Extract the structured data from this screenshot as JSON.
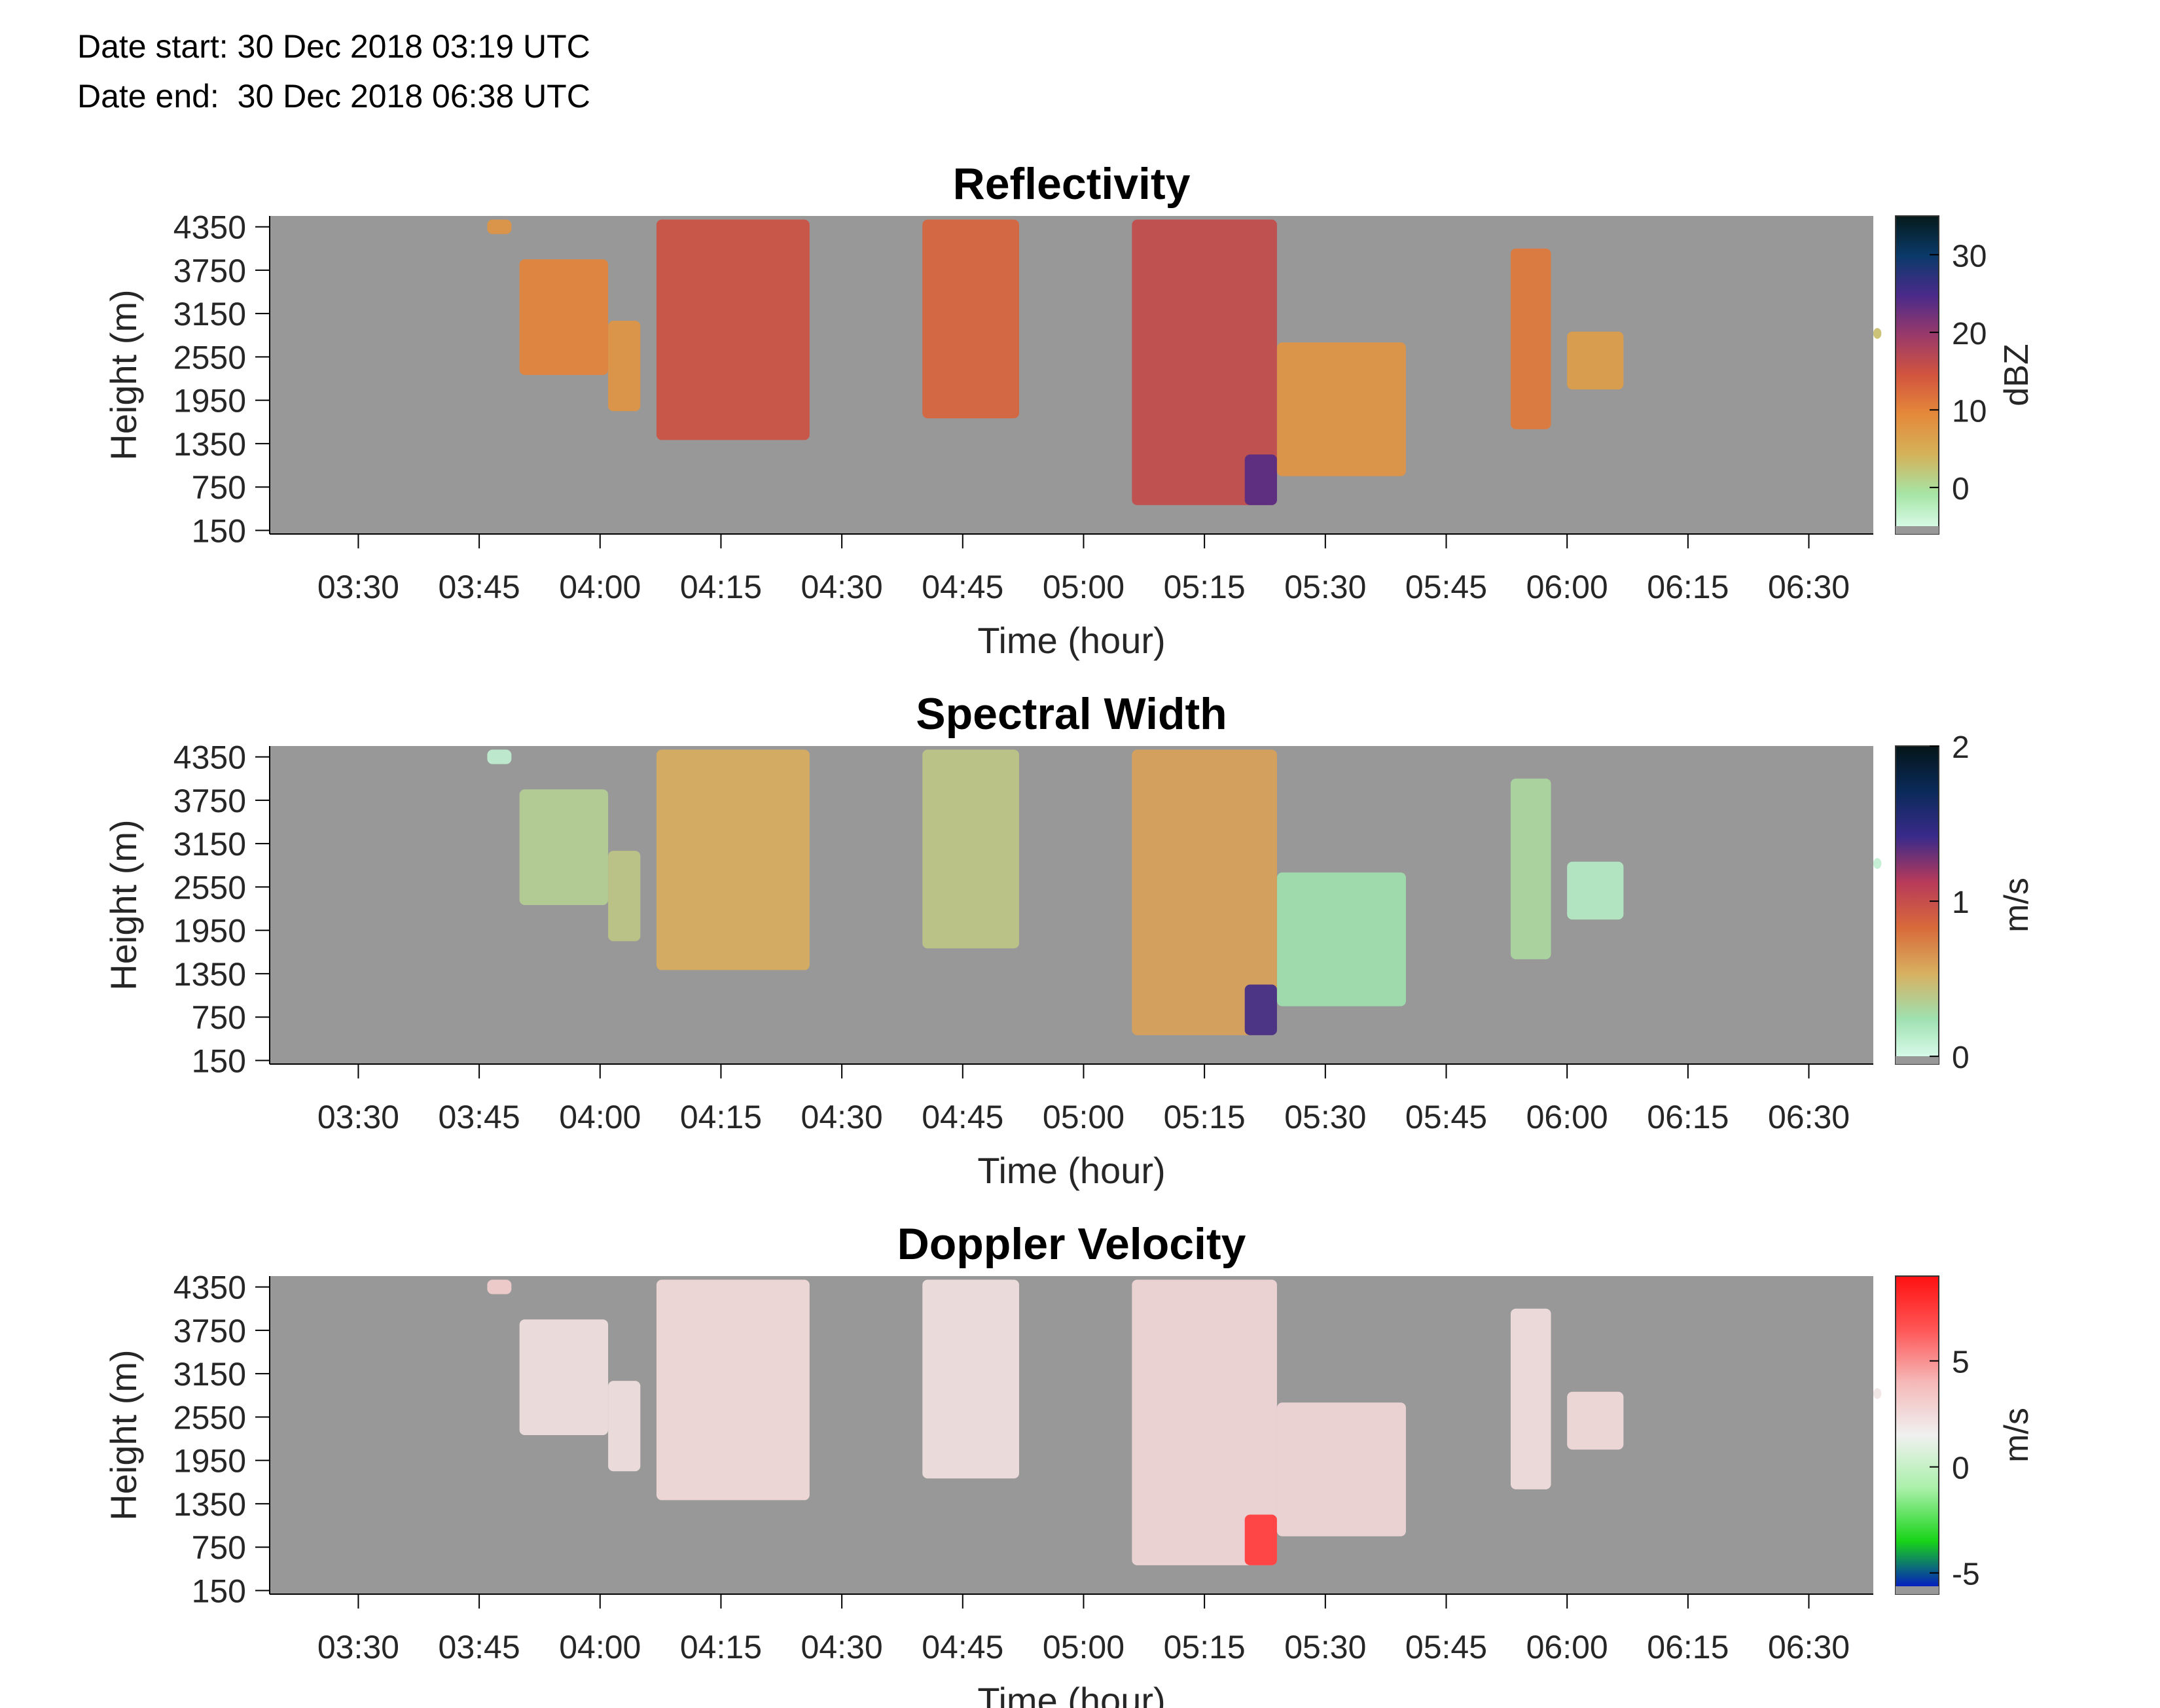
{
  "header": {
    "date_start_label": "Date start:",
    "date_start_value": "30 Dec 2018 03:19 UTC",
    "date_end_label": "Date end:",
    "date_end_value": "30 Dec 2018 06:38 UTC"
  },
  "colors": {
    "no_data": "#989898",
    "reflectivity_cmap": [
      "#e2fff4",
      "#a6e5a6",
      "#d4b25a",
      "#e58a3a",
      "#d2543e",
      "#9a3a6a",
      "#4a2a8a",
      "#0a3a6a",
      "#051a1a"
    ],
    "width_cmap": [
      "#e2fff4",
      "#9fe0b0",
      "#d8b060",
      "#d86a3a",
      "#b83a5a",
      "#3a2a8a",
      "#0a2a5a",
      "#051518"
    ],
    "velocity_cmap": [
      "#0000dd",
      "#18d418",
      "#aaf0aa",
      "#f0f0f0",
      "#f5b8b8",
      "#ff5555",
      "#ff1010"
    ]
  },
  "chart_data": [
    {
      "type": "heatmap",
      "title": "Reflectivity",
      "xlabel": "Time (hour)",
      "ylabel": "Height (m)",
      "colorbar_label": "dBZ",
      "colorbar_ticks": [
        "0",
        "10",
        "20",
        "30"
      ],
      "colorbar_tick_values": [
        0,
        10,
        20,
        30
      ],
      "clim": [
        -6,
        35
      ],
      "x_ticks": [
        "03:30",
        "03:45",
        "04:00",
        "04:15",
        "04:30",
        "04:45",
        "05:00",
        "05:15",
        "05:30",
        "05:45",
        "06:00",
        "06:15",
        "06:30"
      ],
      "y_ticks": [
        "150",
        "750",
        "1350",
        "1950",
        "2550",
        "3150",
        "3750",
        "4350"
      ],
      "xlim": [
        "03:19",
        "06:38"
      ],
      "ylim": [
        100,
        4500
      ],
      "grid": false,
      "echo_cells": [
        {
          "t_start": "03:46",
          "t_end": "03:48",
          "h_bottom": 4250,
          "h_top": 4450,
          "value": 8
        },
        {
          "t_start": "03:50",
          "t_end": "04:00",
          "h_bottom": 2300,
          "h_top": 3900,
          "value": 10
        },
        {
          "t_start": "04:01",
          "t_end": "04:04",
          "h_bottom": 1800,
          "h_top": 3050,
          "value": 8
        },
        {
          "t_start": "04:07",
          "t_end": "04:25",
          "h_bottom": 1400,
          "h_top": 4450,
          "value": 15
        },
        {
          "t_start": "04:40",
          "t_end": "04:51",
          "h_bottom": 1700,
          "h_top": 4450,
          "value": 13
        },
        {
          "t_start": "05:06",
          "t_end": "05:23",
          "h_bottom": 500,
          "h_top": 4450,
          "value": 16
        },
        {
          "t_start": "05:20",
          "t_end": "05:23",
          "h_bottom": 500,
          "h_top": 1200,
          "value": 24
        },
        {
          "t_start": "05:24",
          "t_end": "05:39",
          "h_bottom": 900,
          "h_top": 2750,
          "value": 8
        },
        {
          "t_start": "05:53",
          "t_end": "05:57",
          "h_bottom": 1550,
          "h_top": 4050,
          "value": 11
        },
        {
          "t_start": "06:00",
          "t_end": "06:06",
          "h_bottom": 2100,
          "h_top": 2900,
          "value": 7
        },
        {
          "t_start": "06:38",
          "t_end": "06:38",
          "h_bottom": 2800,
          "h_top": 2950,
          "value": 3
        }
      ]
    },
    {
      "type": "heatmap",
      "title": "Spectral Width",
      "xlabel": "Time (hour)",
      "ylabel": "Height (m)",
      "colorbar_label": "m/s",
      "colorbar_ticks": [
        "0",
        "1",
        "2"
      ],
      "colorbar_tick_values": [
        0,
        1,
        2
      ],
      "clim": [
        -0.05,
        2
      ],
      "x_ticks": [
        "03:30",
        "03:45",
        "04:00",
        "04:15",
        "04:30",
        "04:45",
        "05:00",
        "05:15",
        "05:30",
        "05:45",
        "06:00",
        "06:15",
        "06:30"
      ],
      "y_ticks": [
        "150",
        "750",
        "1350",
        "1950",
        "2550",
        "3150",
        "3750",
        "4350"
      ],
      "xlim": [
        "03:19",
        "06:38"
      ],
      "ylim": [
        100,
        4500
      ],
      "grid": false,
      "echo_cells": [
        {
          "t_start": "03:46",
          "t_end": "03:48",
          "h_bottom": 4250,
          "h_top": 4450,
          "value": 0.1
        },
        {
          "t_start": "03:50",
          "t_end": "04:00",
          "h_bottom": 2300,
          "h_top": 3900,
          "value": 0.35
        },
        {
          "t_start": "04:01",
          "t_end": "04:04",
          "h_bottom": 1800,
          "h_top": 3050,
          "value": 0.4
        },
        {
          "t_start": "04:07",
          "t_end": "04:25",
          "h_bottom": 1400,
          "h_top": 4450,
          "value": 0.55
        },
        {
          "t_start": "04:40",
          "t_end": "04:51",
          "h_bottom": 1700,
          "h_top": 4450,
          "value": 0.4
        },
        {
          "t_start": "05:06",
          "t_end": "05:23",
          "h_bottom": 500,
          "h_top": 4450,
          "value": 0.6
        },
        {
          "t_start": "05:20",
          "t_end": "05:23",
          "h_bottom": 500,
          "h_top": 1200,
          "value": 1.4
        },
        {
          "t_start": "05:24",
          "t_end": "05:39",
          "h_bottom": 900,
          "h_top": 2750,
          "value": 0.25
        },
        {
          "t_start": "05:53",
          "t_end": "05:57",
          "h_bottom": 1550,
          "h_top": 4050,
          "value": 0.3
        },
        {
          "t_start": "06:00",
          "t_end": "06:06",
          "h_bottom": 2100,
          "h_top": 2900,
          "value": 0.15
        },
        {
          "t_start": "06:38",
          "t_end": "06:38",
          "h_bottom": 2800,
          "h_top": 2950,
          "value": 0.1
        }
      ]
    },
    {
      "type": "heatmap",
      "title": "Doppler Velocity",
      "xlabel": "Time (hour)",
      "ylabel": "Height (m)",
      "colorbar_label": "m/s",
      "colorbar_ticks": [
        "-5",
        "0",
        "5"
      ],
      "colorbar_tick_values": [
        -5,
        0,
        5
      ],
      "clim": [
        -6,
        9
      ],
      "x_ticks": [
        "03:30",
        "03:45",
        "04:00",
        "04:15",
        "04:30",
        "04:45",
        "05:00",
        "05:15",
        "05:30",
        "05:45",
        "06:00",
        "06:15",
        "06:30"
      ],
      "y_ticks": [
        "150",
        "750",
        "1350",
        "1950",
        "2550",
        "3150",
        "3750",
        "4350"
      ],
      "xlim": [
        "03:19",
        "06:38"
      ],
      "ylim": [
        100,
        4500
      ],
      "grid": false,
      "echo_cells": [
        {
          "t_start": "03:46",
          "t_end": "03:48",
          "h_bottom": 4250,
          "h_top": 4450,
          "value": 3
        },
        {
          "t_start": "03:50",
          "t_end": "04:00",
          "h_bottom": 2300,
          "h_top": 3900,
          "value": 2.2
        },
        {
          "t_start": "04:01",
          "t_end": "04:04",
          "h_bottom": 1800,
          "h_top": 3050,
          "value": 2.2
        },
        {
          "t_start": "04:07",
          "t_end": "04:25",
          "h_bottom": 1400,
          "h_top": 4450,
          "value": 2.5
        },
        {
          "t_start": "04:40",
          "t_end": "04:51",
          "h_bottom": 1700,
          "h_top": 4450,
          "value": 2.2
        },
        {
          "t_start": "05:06",
          "t_end": "05:23",
          "h_bottom": 500,
          "h_top": 4450,
          "value": 2.6
        },
        {
          "t_start": "05:20",
          "t_end": "05:23",
          "h_bottom": 500,
          "h_top": 1200,
          "value": 7.5
        },
        {
          "t_start": "05:24",
          "t_end": "05:39",
          "h_bottom": 900,
          "h_top": 2750,
          "value": 2.6
        },
        {
          "t_start": "05:53",
          "t_end": "05:57",
          "h_bottom": 1550,
          "h_top": 4050,
          "value": 2.3
        },
        {
          "t_start": "06:00",
          "t_end": "06:06",
          "h_bottom": 2100,
          "h_top": 2900,
          "value": 2.5
        },
        {
          "t_start": "06:38",
          "t_end": "06:38",
          "h_bottom": 2800,
          "h_top": 2950,
          "value": 2
        }
      ]
    }
  ]
}
